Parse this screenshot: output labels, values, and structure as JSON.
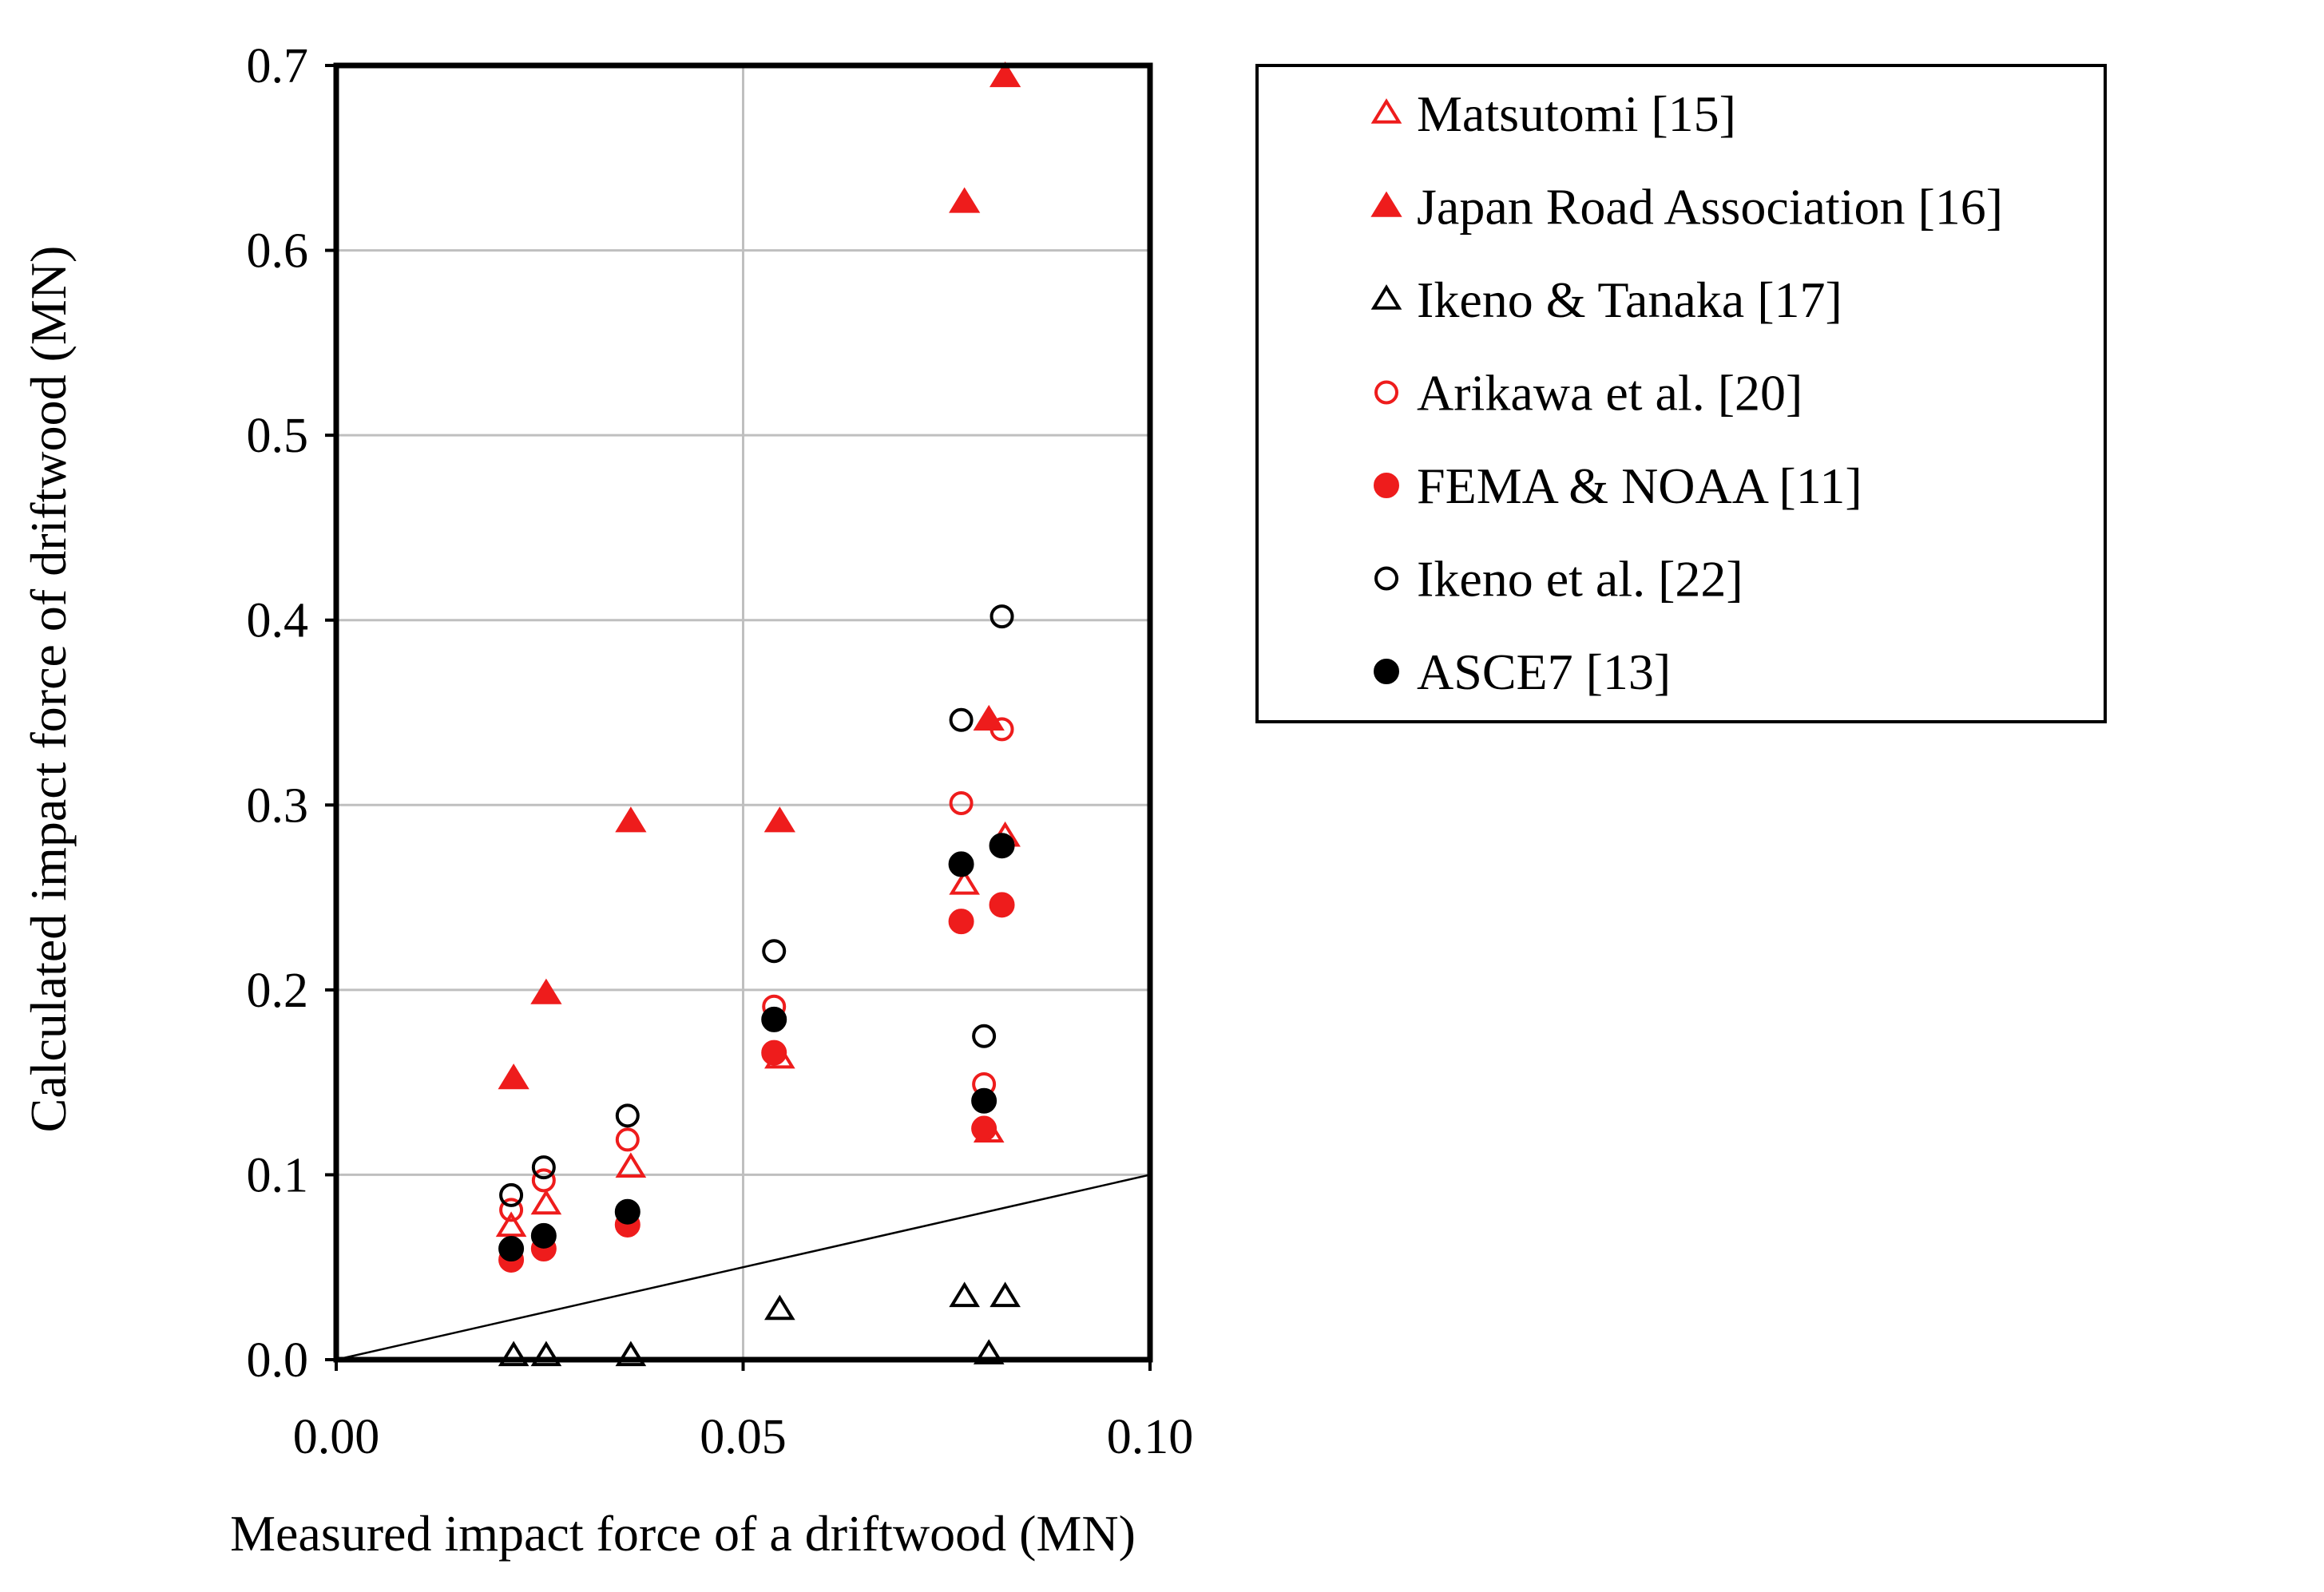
{
  "chart_data": {
    "type": "scatter",
    "title": "",
    "xlabel": "Measured impact force of a driftwood (MN)",
    "ylabel": "Calculated impact force of driftwood (MN)",
    "xlim": [
      0,
      0.1
    ],
    "ylim": [
      0,
      0.7
    ],
    "xticks": [
      0,
      0.05,
      0.1
    ],
    "xtick_labels": [
      "0.00",
      "0.05",
      "0.10"
    ],
    "yticks": [
      0,
      0.1,
      0.2,
      0.3,
      0.4,
      0.5,
      0.6,
      0.7
    ],
    "ytick_labels": [
      "0.0",
      "0.1",
      "0.2",
      "0.3",
      "0.4",
      "0.5",
      "0.6",
      "0.7"
    ],
    "grid": true,
    "reference_line": {
      "x": [
        0,
        0.1
      ],
      "y": [
        0,
        0.1
      ],
      "label": "y = x"
    },
    "legend_position": "outside right, top",
    "series": [
      {
        "name": "Matsutomi [15]",
        "marker": "triangle-open",
        "color": "#ee1c1c",
        "x": [
          0.0215,
          0.0258,
          0.0362,
          0.0545,
          0.0772,
          0.0802,
          0.0822
        ],
        "y": [
          0.072,
          0.084,
          0.104,
          0.163,
          0.257,
          0.123,
          0.283
        ]
      },
      {
        "name": "Japan Road Association [16]",
        "marker": "triangle-filled",
        "color": "#ee1c1c",
        "x": [
          0.0218,
          0.0258,
          0.0362,
          0.0545,
          0.0772,
          0.0802,
          0.0822
        ],
        "y": [
          0.152,
          0.198,
          0.291,
          0.291,
          0.626,
          0.346,
          0.694
        ]
      },
      {
        "name": "Ikeno & Tanaka [17]",
        "marker": "triangle-open",
        "color": "#000000",
        "x": [
          0.0218,
          0.0258,
          0.0362,
          0.0545,
          0.0772,
          0.0802,
          0.0822
        ],
        "y": [
          0.002,
          0.002,
          0.002,
          0.027,
          0.034,
          0.003,
          0.034
        ]
      },
      {
        "name": "Arikawa et al. [20]",
        "marker": "circle-open",
        "color": "#ee1c1c",
        "x": [
          0.0215,
          0.0255,
          0.0358,
          0.0538,
          0.0768,
          0.0796,
          0.0818
        ],
        "y": [
          0.081,
          0.097,
          0.119,
          0.191,
          0.301,
          0.149,
          0.341
        ]
      },
      {
        "name": "FEMA & NOAA [11]",
        "marker": "circle-filled",
        "color": "#ee1c1c",
        "x": [
          0.0215,
          0.0255,
          0.0358,
          0.0538,
          0.0768,
          0.0796,
          0.0818
        ],
        "y": [
          0.054,
          0.06,
          0.073,
          0.166,
          0.237,
          0.125,
          0.246
        ]
      },
      {
        "name": "Ikeno et al. [22]",
        "marker": "circle-open",
        "color": "#000000",
        "x": [
          0.0215,
          0.0255,
          0.0358,
          0.0538,
          0.0768,
          0.0796,
          0.0818
        ],
        "y": [
          0.089,
          0.104,
          0.132,
          0.221,
          0.346,
          0.175,
          0.402
        ]
      },
      {
        "name": "ASCE7 [13]",
        "marker": "circle-filled",
        "color": "#000000",
        "x": [
          0.0215,
          0.0255,
          0.0358,
          0.0538,
          0.0768,
          0.0796,
          0.0818
        ],
        "y": [
          0.06,
          0.067,
          0.08,
          0.184,
          0.268,
          0.14,
          0.278
        ]
      }
    ]
  }
}
